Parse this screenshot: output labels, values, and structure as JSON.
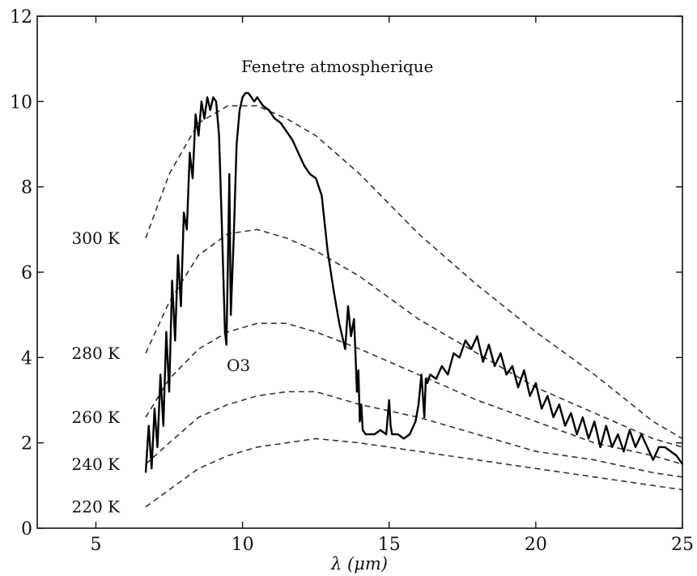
{
  "chart_data": {
    "type": "line",
    "title": "",
    "xlabel": "λ (μm)",
    "ylabel": "",
    "xlim": [
      3,
      25
    ],
    "ylim": [
      0,
      12
    ],
    "xticks": [
      5,
      10,
      15,
      20,
      25
    ],
    "yticks": [
      0,
      2,
      4,
      6,
      8,
      10,
      12
    ],
    "grid": false,
    "annotations": [
      "Fenetre atmospherique",
      "O3"
    ],
    "blackbody_curves": [
      {
        "label": "300 K",
        "x": [
          6.7,
          7.5,
          8.5,
          9.5,
          10.5,
          11.5,
          12.5,
          14,
          16,
          18,
          20,
          22,
          24,
          25
        ],
        "y": [
          6.8,
          8.3,
          9.5,
          9.9,
          9.9,
          9.6,
          9.2,
          8.3,
          6.9,
          5.7,
          4.6,
          3.6,
          2.5,
          2.1
        ]
      },
      {
        "label": "280 K",
        "x": [
          6.7,
          7.5,
          8.5,
          9.5,
          10.5,
          11.5,
          12.5,
          14,
          16,
          18,
          20,
          22,
          24,
          25
        ],
        "y": [
          4.1,
          5.3,
          6.4,
          6.9,
          7.0,
          6.8,
          6.5,
          5.9,
          4.9,
          4.1,
          3.3,
          2.7,
          2.1,
          1.9
        ]
      },
      {
        "label": "260 K",
        "x": [
          6.7,
          7.5,
          8.5,
          9.5,
          10.5,
          11.5,
          12.5,
          14,
          16,
          18,
          20,
          22,
          24,
          25
        ],
        "y": [
          2.6,
          3.5,
          4.2,
          4.6,
          4.8,
          4.8,
          4.6,
          4.2,
          3.6,
          3.0,
          2.5,
          2.0,
          1.7,
          1.5
        ]
      },
      {
        "label": "240 K",
        "x": [
          6.7,
          7.5,
          8.5,
          9.5,
          10.5,
          11.5,
          12.5,
          14,
          16,
          18,
          20,
          22,
          24,
          25
        ],
        "y": [
          1.5,
          2.0,
          2.6,
          2.9,
          3.1,
          3.2,
          3.2,
          2.9,
          2.6,
          2.2,
          1.8,
          1.6,
          1.3,
          1.2
        ]
      },
      {
        "label": "220 K",
        "x": [
          6.7,
          7.5,
          8.5,
          9.5,
          10.5,
          11.5,
          12.5,
          14,
          16,
          18,
          20,
          22,
          24,
          25
        ],
        "y": [
          0.5,
          0.9,
          1.4,
          1.7,
          1.9,
          2.0,
          2.1,
          2.0,
          1.8,
          1.6,
          1.4,
          1.2,
          1.0,
          0.9
        ]
      }
    ],
    "measured_spectrum": {
      "x": [
        6.7,
        6.8,
        6.9,
        7.0,
        7.1,
        7.2,
        7.3,
        7.4,
        7.5,
        7.6,
        7.7,
        7.8,
        7.9,
        8.0,
        8.1,
        8.2,
        8.3,
        8.4,
        8.5,
        8.6,
        8.7,
        8.8,
        8.9,
        9.0,
        9.1,
        9.2,
        9.3,
        9.4,
        9.45,
        9.5,
        9.55,
        9.6,
        9.7,
        9.8,
        9.9,
        10.0,
        10.1,
        10.2,
        10.3,
        10.4,
        10.5,
        10.7,
        10.9,
        11.1,
        11.3,
        11.5,
        11.7,
        11.9,
        12.1,
        12.3,
        12.5,
        12.7,
        12.9,
        13.1,
        13.3,
        13.5,
        13.6,
        13.7,
        13.8,
        13.85,
        13.9,
        13.95,
        14.0,
        14.05,
        14.1,
        14.2,
        14.3,
        14.5,
        14.7,
        14.9,
        15.0,
        15.05,
        15.1,
        15.3,
        15.5,
        15.7,
        15.9,
        16.0,
        16.1,
        16.2,
        16.25,
        16.3,
        16.4,
        16.6,
        16.8,
        17.0,
        17.2,
        17.4,
        17.6,
        17.8,
        18.0,
        18.2,
        18.4,
        18.6,
        18.8,
        19.0,
        19.2,
        19.4,
        19.6,
        19.8,
        20.0,
        20.2,
        20.4,
        20.6,
        20.8,
        21.0,
        21.2,
        21.4,
        21.6,
        21.8,
        22.0,
        22.2,
        22.4,
        22.6,
        22.8,
        23.0,
        23.2,
        23.4,
        23.6,
        23.8,
        24.0,
        24.2,
        24.4,
        24.6,
        24.8,
        25.0
      ],
      "y": [
        1.3,
        2.4,
        1.4,
        2.8,
        1.9,
        3.6,
        2.4,
        4.6,
        3.2,
        5.8,
        4.4,
        6.4,
        5.2,
        7.4,
        7.0,
        8.8,
        8.2,
        9.7,
        9.2,
        10.0,
        9.6,
        10.1,
        9.8,
        10.1,
        10.0,
        9.2,
        7.0,
        4.6,
        4.3,
        6.2,
        8.3,
        5.0,
        6.8,
        9.0,
        9.8,
        10.1,
        10.2,
        10.2,
        10.1,
        10.0,
        10.1,
        9.9,
        9.8,
        9.6,
        9.5,
        9.3,
        9.1,
        8.8,
        8.5,
        8.3,
        8.2,
        7.8,
        6.5,
        5.6,
        4.8,
        4.2,
        5.2,
        4.5,
        4.9,
        4.1,
        3.2,
        3.7,
        2.5,
        2.9,
        2.3,
        2.2,
        2.2,
        2.2,
        2.3,
        2.2,
        3.0,
        2.4,
        2.2,
        2.2,
        2.1,
        2.2,
        2.5,
        2.9,
        3.6,
        2.6,
        3.5,
        3.4,
        3.6,
        3.5,
        3.8,
        3.6,
        4.1,
        4.0,
        4.4,
        4.2,
        4.5,
        3.9,
        4.3,
        3.8,
        4.1,
        3.6,
        3.8,
        3.3,
        3.7,
        3.1,
        3.4,
        2.8,
        3.1,
        2.6,
        2.9,
        2.4,
        2.7,
        2.2,
        2.6,
        2.1,
        2.5,
        1.9,
        2.4,
        1.9,
        2.2,
        1.8,
        2.3,
        1.9,
        2.2,
        1.9,
        1.6,
        1.9,
        1.9,
        1.8,
        1.7,
        1.5
      ]
    }
  }
}
